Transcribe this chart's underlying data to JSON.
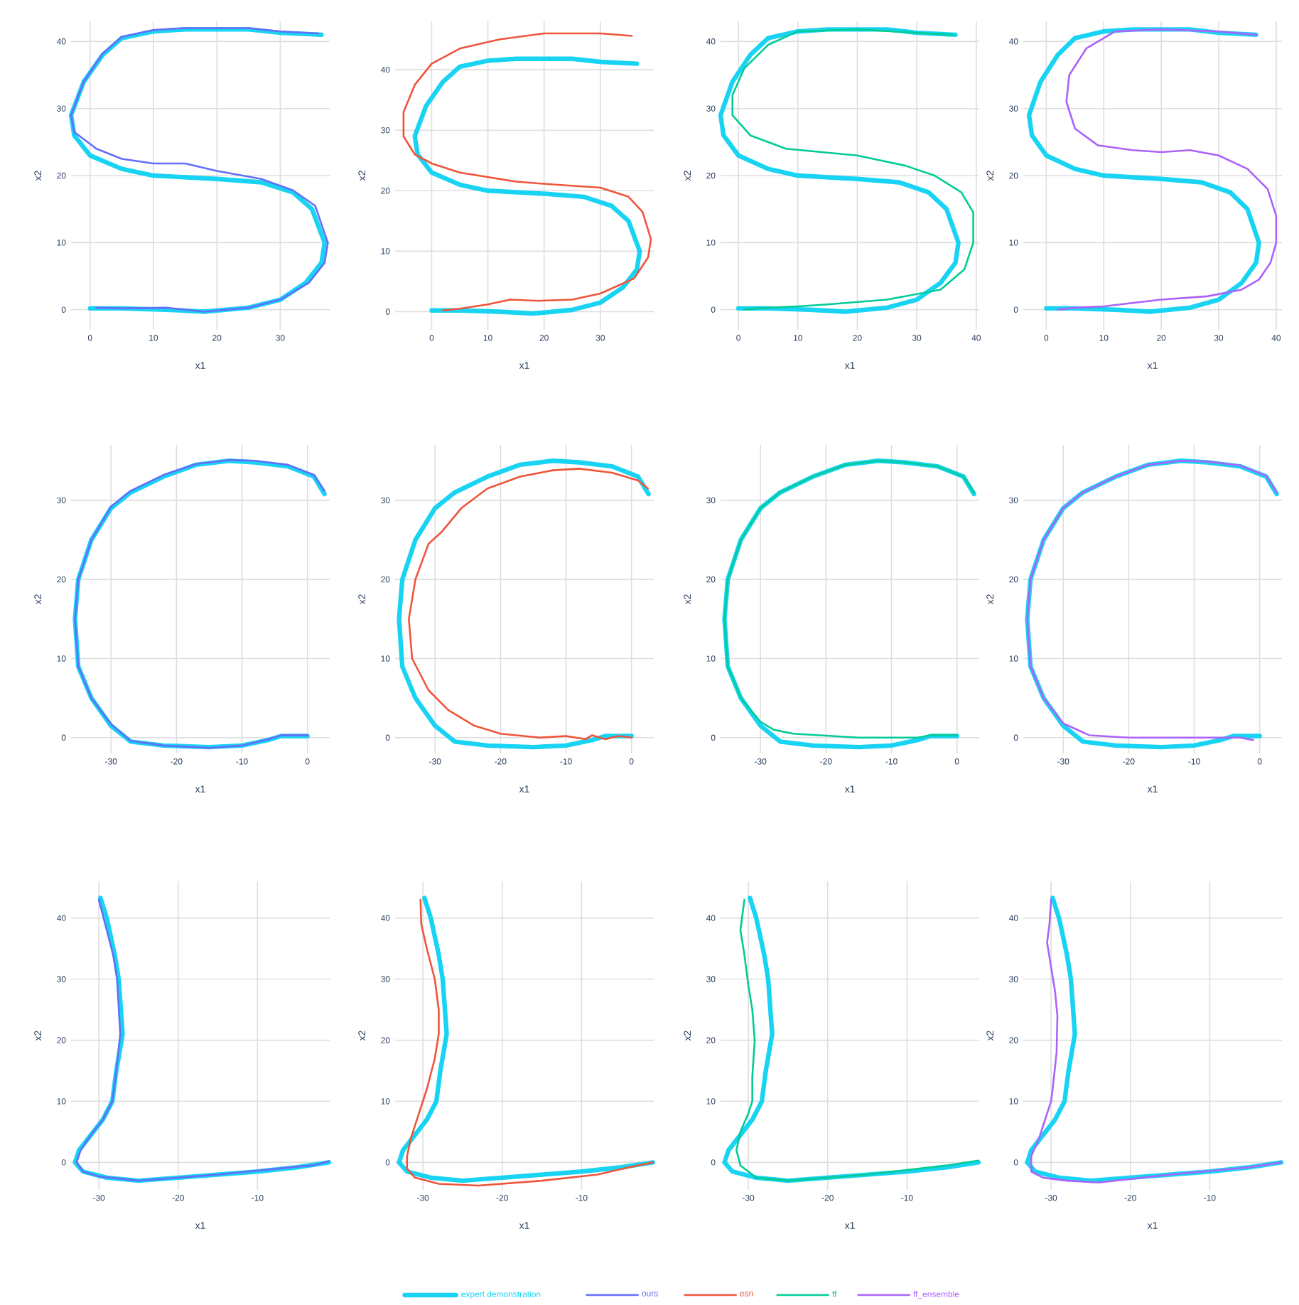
{
  "chart_data": [
    {
      "type": "line",
      "xlabel": "x1",
      "ylabel": "x2",
      "xlim": [
        -3,
        37.8
      ],
      "ylim": [
        -3,
        43
      ],
      "xticks": [
        0,
        10,
        20,
        30
      ],
      "yticks": [
        0,
        10,
        20,
        30,
        40
      ],
      "grid": true,
      "legend": "bottom",
      "series": [
        {
          "name": "expert demonstration",
          "color": "#19d3f3",
          "x": [
            36.5,
            30,
            25,
            15,
            10,
            5,
            2,
            -1,
            -3,
            -2.5,
            0,
            5,
            10,
            20,
            27,
            32,
            35,
            37,
            36.5,
            34,
            30,
            25,
            18,
            12,
            5,
            0
          ],
          "values": [
            41,
            41.3,
            41.8,
            41.8,
            41.5,
            40.5,
            38,
            34,
            29,
            26,
            23,
            21,
            20,
            19.5,
            19,
            17.5,
            15,
            10,
            7,
            4,
            1.5,
            0.3,
            -0.3,
            0,
            0.2,
            0.2
          ]
        },
        {
          "name": "ours",
          "color": "#636efa",
          "x": [
            36,
            30,
            25,
            15,
            10,
            5,
            2,
            -1,
            -3,
            -2.5,
            1,
            5,
            10,
            15,
            20,
            27,
            32,
            35.5,
            37.5,
            37,
            34.5,
            30,
            25,
            18,
            12,
            5,
            1
          ],
          "values": [
            41.2,
            41.5,
            42,
            42,
            41.7,
            40.7,
            38.2,
            34,
            29,
            26.5,
            24,
            22.5,
            21.8,
            21.8,
            20.7,
            19.5,
            17.8,
            15.5,
            10,
            7,
            4,
            1.5,
            0.3,
            -0.3,
            0.3,
            0.2,
            0.3
          ]
        }
      ]
    },
    {
      "type": "line",
      "xlabel": "x1",
      "ylabel": "x2",
      "xlim": [
        -6.5,
        39.5
      ],
      "ylim": [
        -3,
        48
      ],
      "xticks": [
        0,
        10,
        20,
        30
      ],
      "yticks": [
        0,
        10,
        20,
        30,
        40
      ],
      "grid": true,
      "legend": "bottom",
      "series": [
        {
          "color": "#19d3f3",
          "x": [
            36.5,
            30,
            25,
            15,
            10,
            5,
            2,
            -1,
            -3,
            -2.5,
            0,
            5,
            10,
            20,
            27,
            32,
            35,
            37,
            36.5,
            34,
            30,
            25,
            18,
            12,
            5,
            0
          ],
          "values": [
            41,
            41.3,
            41.8,
            41.8,
            41.5,
            40.5,
            38,
            34,
            29,
            26,
            23,
            21,
            20,
            19.5,
            19,
            17.5,
            15,
            10,
            7,
            4,
            1.5,
            0.3,
            -0.3,
            0,
            0.2,
            0.2
          ]
        },
        {
          "name": "esn",
          "color": "#ef553b",
          "x": [
            35.6,
            30,
            20,
            12,
            5,
            0,
            -3,
            -5,
            -5,
            -3,
            0,
            5,
            15,
            22,
            30,
            35,
            37.5,
            39,
            38.5,
            36,
            30,
            25,
            19,
            14,
            10,
            5,
            2
          ],
          "values": [
            45.6,
            46,
            46,
            45,
            43.5,
            41,
            37.5,
            33,
            29,
            26,
            24.5,
            23,
            21.5,
            21,
            20.5,
            19,
            16.5,
            12,
            9,
            5.5,
            3,
            2,
            1.8,
            2,
            1.2,
            0.5,
            0.2
          ]
        }
      ]
    },
    {
      "type": "line",
      "xlabel": "x1",
      "ylabel": "x2",
      "xlim": [
        -3,
        40.5
      ],
      "ylim": [
        -3,
        43
      ],
      "xticks": [
        0,
        10,
        20,
        30,
        40
      ],
      "yticks": [
        0,
        10,
        20,
        30,
        40
      ],
      "grid": true,
      "legend": "bottom",
      "series": [
        {
          "color": "#19d3f3",
          "x": [
            36.5,
            30,
            25,
            15,
            10,
            5,
            2,
            -1,
            -3,
            -2.5,
            0,
            5,
            10,
            20,
            27,
            32,
            35,
            37,
            36.5,
            34,
            30,
            25,
            18,
            12,
            5,
            0
          ],
          "values": [
            41,
            41.3,
            41.8,
            41.8,
            41.5,
            40.5,
            38,
            34,
            29,
            26,
            23,
            21,
            20,
            19.5,
            19,
            17.5,
            15,
            10,
            7,
            4,
            1.5,
            0.3,
            -0.3,
            0,
            0.2,
            0.2
          ]
        },
        {
          "name": "ff",
          "color": "#00cc96",
          "x": [
            36,
            30,
            20,
            10,
            5,
            1,
            -1,
            -1,
            2,
            8,
            20,
            28,
            33,
            37.5,
            39.5,
            39.5,
            38,
            34,
            25,
            15,
            10,
            3,
            1
          ],
          "values": [
            41,
            41.3,
            41.8,
            41.5,
            39.5,
            36,
            32,
            29,
            26,
            24,
            23,
            21.5,
            20,
            17.5,
            14.5,
            10,
            6,
            3,
            1.5,
            0.8,
            0.5,
            0.2,
            0
          ]
        }
      ]
    },
    {
      "type": "line",
      "xlabel": "x1",
      "ylabel": "x2",
      "xlim": [
        -4,
        41
      ],
      "ylim": [
        -3,
        43
      ],
      "xticks": [
        0,
        10,
        20,
        30,
        40
      ],
      "yticks": [
        0,
        10,
        20,
        30,
        40
      ],
      "grid": true,
      "legend": "bottom",
      "series": [
        {
          "color": "#19d3f3",
          "x": [
            36.5,
            30,
            25,
            15,
            10,
            5,
            2,
            -1,
            -3,
            -2.5,
            0,
            5,
            10,
            20,
            27,
            32,
            35,
            37,
            36.5,
            34,
            30,
            25,
            18,
            12,
            5,
            0
          ],
          "values": [
            41,
            41.3,
            41.8,
            41.8,
            41.5,
            40.5,
            38,
            34,
            29,
            26,
            23,
            21,
            20,
            19.5,
            19,
            17.5,
            15,
            10,
            7,
            4,
            1.5,
            0.3,
            -0.3,
            0,
            0.2,
            0.2
          ]
        },
        {
          "name": "ff_ensemble",
          "color": "#ab63fa",
          "x": [
            36.5,
            30,
            20,
            12,
            7,
            4,
            3.5,
            5,
            9,
            15,
            20,
            25,
            30,
            35,
            38.5,
            40,
            40,
            39,
            37,
            34,
            28,
            20,
            10,
            5,
            2
          ],
          "values": [
            41,
            41.5,
            41.8,
            41.5,
            39,
            35,
            31,
            27,
            24.5,
            23.8,
            23.5,
            23.8,
            23,
            21,
            18,
            14,
            10,
            7,
            4.5,
            3,
            2,
            1.5,
            0.5,
            0.3,
            0
          ]
        }
      ]
    },
    {
      "type": "line",
      "xlabel": "x1",
      "ylabel": "x2",
      "xlim": [
        -36.1,
        3.4
      ],
      "ylim": [
        -2,
        37
      ],
      "xticks": [
        -30,
        -20,
        -10,
        0
      ],
      "yticks": [
        0,
        10,
        20,
        30
      ],
      "grid": true,
      "series": [
        {
          "color": "#19d3f3",
          "x": [
            2.6,
            1,
            -3,
            -8,
            -12,
            -17,
            -22,
            -27,
            -30,
            -33,
            -35,
            -35.5,
            -35,
            -33,
            -30,
            -27,
            -22,
            -15,
            -10,
            -6,
            -4,
            0
          ],
          "values": [
            30.8,
            33,
            34.3,
            34.8,
            35,
            34.5,
            33,
            31,
            29,
            25,
            20,
            15,
            9,
            5,
            1.5,
            -0.5,
            -1,
            -1.2,
            -1,
            -0.3,
            0.2,
            0.2
          ]
        },
        {
          "color": "#636efa",
          "x": [
            2.6,
            1,
            -3,
            -8,
            -12,
            -17,
            -22,
            -27,
            -30,
            -33,
            -35,
            -35.5,
            -35,
            -33,
            -30,
            -27,
            -22,
            -15,
            -10,
            -6,
            -4,
            0
          ],
          "values": [
            31.2,
            33.2,
            34.5,
            35,
            35.1,
            34.6,
            33.2,
            31.2,
            29.2,
            25,
            20,
            15,
            9,
            5,
            1.7,
            -0.4,
            -1,
            -1.3,
            -1,
            -0.2,
            0.3,
            0.3
          ]
        }
      ]
    },
    {
      "type": "line",
      "xlabel": "x1",
      "ylabel": "x2",
      "xlim": [
        -36.1,
        3.4
      ],
      "ylim": [
        -2,
        37
      ],
      "xticks": [
        -30,
        -20,
        -10,
        0
      ],
      "yticks": [
        0,
        10,
        20,
        30
      ],
      "grid": true,
      "series": [
        {
          "color": "#19d3f3",
          "x": [
            2.6,
            1,
            -3,
            -8,
            -12,
            -17,
            -22,
            -27,
            -30,
            -33,
            -35,
            -35.5,
            -35,
            -33,
            -30,
            -27,
            -22,
            -15,
            -10,
            -6,
            -4,
            0
          ],
          "values": [
            30.8,
            33,
            34.3,
            34.8,
            35,
            34.5,
            33,
            31,
            29,
            25,
            20,
            15,
            9,
            5,
            1.5,
            -0.5,
            -1,
            -1.2,
            -1,
            -0.3,
            0.2,
            0.2
          ]
        },
        {
          "color": "#ef553b",
          "x": [
            2.5,
            1,
            -3,
            -8,
            -12,
            -17,
            -22,
            -26,
            -29,
            -31,
            -33,
            -34,
            -33.5,
            -31,
            -28,
            -24,
            -20,
            -14,
            -10,
            -7,
            -6,
            -4,
            -2,
            0
          ],
          "values": [
            31.5,
            32.5,
            33.5,
            34,
            33.8,
            33,
            31.5,
            29,
            26,
            24.5,
            20,
            15,
            10,
            6,
            3.5,
            1.5,
            0.5,
            0,
            0.2,
            -0.2,
            0.3,
            -0.2,
            0.2,
            0
          ]
        }
      ]
    },
    {
      "type": "line",
      "xlabel": "x1",
      "ylabel": "x2",
      "xlim": [
        -36.1,
        3.4
      ],
      "ylim": [
        -2,
        37
      ],
      "xticks": [
        -30,
        -20,
        -10,
        0
      ],
      "yticks": [
        0,
        10,
        20,
        30
      ],
      "grid": true,
      "series": [
        {
          "color": "#19d3f3",
          "x": [
            2.6,
            1,
            -3,
            -8,
            -12,
            -17,
            -22,
            -27,
            -30,
            -33,
            -35,
            -35.5,
            -35,
            -33,
            -30,
            -27,
            -22,
            -15,
            -10,
            -6,
            -4,
            0
          ],
          "values": [
            30.8,
            33,
            34.3,
            34.8,
            35,
            34.5,
            33,
            31,
            29,
            25,
            20,
            15,
            9,
            5,
            1.5,
            -0.5,
            -1,
            -1.2,
            -1,
            -0.3,
            0.2,
            0.2
          ]
        },
        {
          "color": "#00cc96",
          "x": [
            2.6,
            1,
            -3,
            -8,
            -12,
            -17,
            -22,
            -27,
            -30,
            -33,
            -35,
            -35.5,
            -35,
            -33,
            -30,
            -28,
            -25,
            -15,
            -6,
            -4,
            0
          ],
          "values": [
            31,
            33,
            34.3,
            34.8,
            35,
            34.5,
            33,
            31,
            29,
            25,
            20,
            15,
            9,
            5,
            2,
            1,
            0.5,
            0,
            0,
            0.3,
            0.3
          ]
        }
      ]
    },
    {
      "type": "line",
      "xlabel": "x1",
      "ylabel": "x2",
      "xlim": [
        -36.1,
        3.4
      ],
      "ylim": [
        -2,
        37
      ],
      "xticks": [
        -30,
        -20,
        -10,
        0
      ],
      "yticks": [
        0,
        10,
        20,
        30
      ],
      "grid": true,
      "series": [
        {
          "color": "#19d3f3",
          "x": [
            2.6,
            1,
            -3,
            -8,
            -12,
            -17,
            -22,
            -27,
            -30,
            -33,
            -35,
            -35.5,
            -35,
            -33,
            -30,
            -27,
            -22,
            -15,
            -10,
            -6,
            -4,
            0
          ],
          "values": [
            30.8,
            33,
            34.3,
            34.8,
            35,
            34.5,
            33,
            31,
            29,
            25,
            20,
            15,
            9,
            5,
            1.5,
            -0.5,
            -1,
            -1.2,
            -1,
            -0.3,
            0.2,
            0.2
          ]
        },
        {
          "color": "#ab63fa",
          "x": [
            2.6,
            1,
            -3,
            -8,
            -12,
            -17,
            -22,
            -27,
            -30,
            -33,
            -35,
            -35.5,
            -35,
            -33,
            -30,
            -26,
            -20,
            -10,
            -3,
            -1
          ],
          "values": [
            31,
            33.1,
            34.4,
            34.9,
            35,
            34.5,
            33,
            31,
            29,
            25,
            20,
            15,
            9,
            5,
            1.8,
            0.3,
            0,
            0,
            0,
            -0.3
          ]
        }
      ]
    },
    {
      "type": "line",
      "xlabel": "x1",
      "ylabel": "x2",
      "xlim": [
        -33.5,
        -0.9
      ],
      "ylim": [
        -4.5,
        46
      ],
      "xticks": [
        -30,
        -20,
        -10
      ],
      "yticks": [
        0,
        10,
        20,
        30,
        40
      ],
      "grid": true,
      "series": [
        {
          "color": "#19d3f3",
          "x": [
            -29.8,
            -29,
            -28,
            -27.5,
            -27,
            -27.8,
            -28.3,
            -29.5,
            -31,
            -32.5,
            -33,
            -32,
            -29,
            -25,
            -20,
            -10,
            -5,
            -1
          ],
          "values": [
            43.3,
            40,
            34,
            30,
            21,
            15,
            10,
            7,
            4.5,
            2,
            0,
            -1.5,
            -2.5,
            -3,
            -2.5,
            -1.5,
            -0.8,
            0
          ]
        },
        {
          "color": "#636efa",
          "x": [
            -30,
            -29,
            -28.2,
            -27.7,
            -27.3,
            -27.8,
            -28.3,
            -29.5,
            -31,
            -32.3,
            -32.8,
            -32,
            -30,
            -25,
            -15,
            -5,
            -3,
            -1
          ],
          "values": [
            43,
            38,
            34,
            30,
            21,
            15,
            10,
            7,
            4.5,
            2,
            0,
            -1.5,
            -2.3,
            -3,
            -2,
            -0.7,
            -0.5,
            0.2
          ]
        }
      ]
    },
    {
      "type": "line",
      "xlabel": "x1",
      "ylabel": "x2",
      "xlim": [
        -33.5,
        -0.9
      ],
      "ylim": [
        -4.5,
        46
      ],
      "xticks": [
        -30,
        -20,
        -10
      ],
      "yticks": [
        0,
        10,
        20,
        30,
        40
      ],
      "grid": true,
      "series": [
        {
          "color": "#19d3f3",
          "x": [
            -29.8,
            -29,
            -28,
            -27.5,
            -27,
            -27.8,
            -28.3,
            -29.5,
            -31,
            -32.5,
            -33,
            -32,
            -29,
            -25,
            -20,
            -10,
            -5,
            -1
          ],
          "values": [
            43.3,
            40,
            34,
            30,
            21,
            15,
            10,
            7,
            4.5,
            2,
            0,
            -1.5,
            -2.5,
            -3,
            -2.5,
            -1.5,
            -0.8,
            0
          ]
        },
        {
          "color": "#ef553b",
          "x": [
            -30.3,
            -30.2,
            -29.5,
            -28.5,
            -28,
            -28,
            -28.5,
            -29.5,
            -30.5,
            -31.5,
            -32,
            -32,
            -31,
            -28,
            -23,
            -15,
            -8,
            -4,
            -1
          ],
          "values": [
            43,
            39,
            35,
            30,
            25,
            21,
            17,
            12,
            8,
            4,
            1,
            -1,
            -2.5,
            -3.5,
            -3.8,
            -3,
            -2,
            -0.8,
            0
          ]
        }
      ]
    },
    {
      "type": "line",
      "xlabel": "x1",
      "ylabel": "x2",
      "xlim": [
        -33.5,
        -0.9
      ],
      "ylim": [
        -4.5,
        46
      ],
      "xticks": [
        -30,
        -20,
        -10
      ],
      "yticks": [
        0,
        10,
        20,
        30,
        40
      ],
      "grid": true,
      "series": [
        {
          "color": "#19d3f3",
          "x": [
            -29.8,
            -29,
            -28,
            -27.5,
            -27,
            -27.8,
            -28.3,
            -29.5,
            -31,
            -32.5,
            -33,
            -32,
            -29,
            -25,
            -20,
            -10,
            -5,
            -1
          ],
          "values": [
            43.3,
            40,
            34,
            30,
            21,
            15,
            10,
            7,
            4.5,
            2,
            0,
            -1.5,
            -2.5,
            -3,
            -2.5,
            -1.5,
            -0.8,
            0
          ]
        },
        {
          "color": "#00cc96",
          "x": [
            -30.5,
            -31,
            -30.5,
            -30,
            -29.5,
            -29.2,
            -29.5,
            -29.5,
            -30,
            -31,
            -31.5,
            -31,
            -29,
            -25,
            -15,
            -5,
            -1
          ],
          "values": [
            43,
            38,
            34,
            29,
            25,
            20,
            14,
            10,
            8,
            5,
            2,
            -0.5,
            -2.5,
            -3,
            -2,
            -0.5,
            0.3
          ]
        }
      ]
    },
    {
      "type": "line",
      "xlabel": "x1",
      "ylabel": "x2",
      "xlim": [
        -33.5,
        -0.9
      ],
      "ylim": [
        -4.5,
        46
      ],
      "xticks": [
        -30,
        -20,
        -10
      ],
      "yticks": [
        0,
        10,
        20,
        30,
        40
      ],
      "grid": true,
      "series": [
        {
          "color": "#19d3f3",
          "x": [
            -29.8,
            -29,
            -28,
            -27.5,
            -27,
            -27.8,
            -28.3,
            -29.5,
            -31,
            -32.5,
            -33,
            -32,
            -29,
            -25,
            -20,
            -10,
            -5,
            -1
          ],
          "values": [
            43.3,
            40,
            34,
            30,
            21,
            15,
            10,
            7,
            4.5,
            2,
            0,
            -1.5,
            -2.5,
            -3,
            -2.5,
            -1.5,
            -0.8,
            0
          ]
        },
        {
          "color": "#ab63fa",
          "x": [
            -30,
            -30.2,
            -30.5,
            -30,
            -29.5,
            -29.2,
            -29.3,
            -29.8,
            -30,
            -30.5,
            -31.5,
            -32.5,
            -32.5,
            -31,
            -28,
            -24,
            -15,
            -5,
            -1
          ],
          "values": [
            43,
            39,
            36,
            32,
            28,
            24,
            18,
            12,
            10,
            8,
            4,
            1,
            -1.5,
            -2.5,
            -3,
            -3.3,
            -2,
            -0.8,
            0
          ]
        }
      ]
    }
  ]
}
